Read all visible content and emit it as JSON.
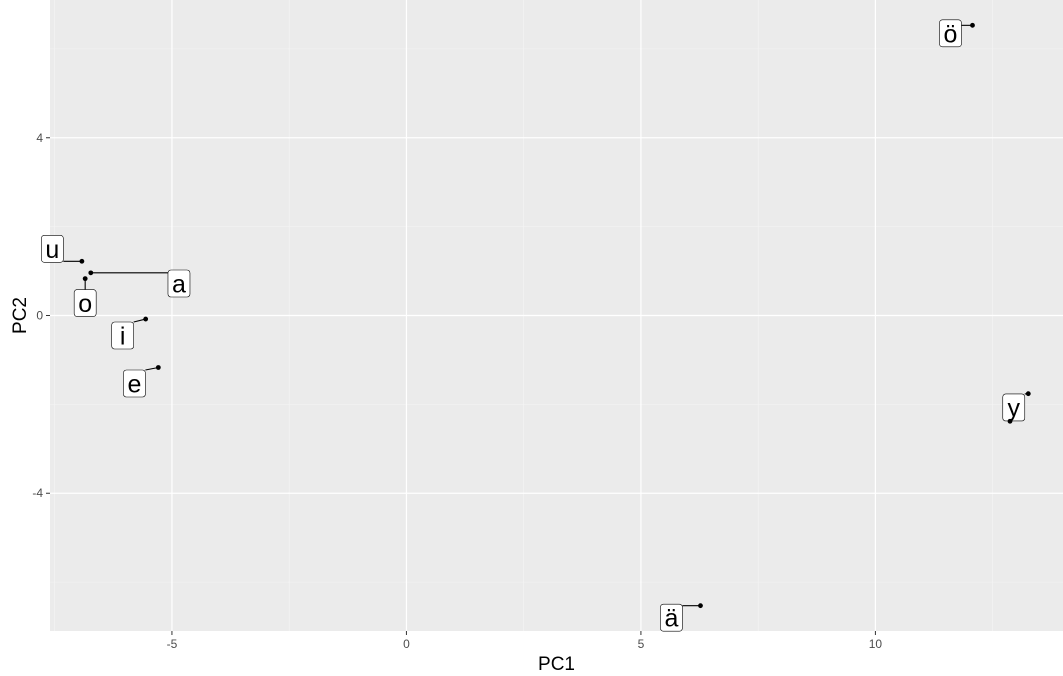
{
  "chart_data": {
    "type": "scatter",
    "xlabel": "PC1",
    "ylabel": "PC2",
    "xlim": [
      -7.6,
      14.0
    ],
    "ylim": [
      -7.1,
      7.1
    ],
    "x_ticks": [
      -5,
      0,
      5,
      10
    ],
    "y_ticks": [
      -4,
      0,
      4
    ],
    "x_tick_labels": [
      "-5",
      "0",
      "5",
      "10"
    ],
    "y_tick_labels": [
      "-4",
      "0",
      "4"
    ],
    "grid": true,
    "legend": "none",
    "colors": {
      "panel_background": "#ebebeb",
      "grid_major": "#ffffff",
      "grid_minor": "#f5f5f5",
      "point": "#000000",
      "label_fill": "#ffffff",
      "label_border": "#000000"
    },
    "points": [
      {
        "label": "u",
        "x": -6.92,
        "y": 1.22,
        "label_x": -7.55,
        "label_y": 1.5
      },
      {
        "label": "a",
        "x": -6.73,
        "y": 0.96,
        "label_x": -4.85,
        "label_y": 0.72
      },
      {
        "label": "o",
        "x": -6.85,
        "y": 0.83,
        "label_x": -6.85,
        "label_y": 0.28
      },
      {
        "label": "i",
        "x": -5.56,
        "y": -0.08,
        "label_x": -6.05,
        "label_y": -0.45
      },
      {
        "label": "e",
        "x": -5.29,
        "y": -1.17,
        "label_x": -5.8,
        "label_y": -1.53
      },
      {
        "label": "ö",
        "x": 12.07,
        "y": 6.53,
        "label_x": 11.6,
        "label_y": 6.35
      },
      {
        "label": "y",
        "x": 13.26,
        "y": -1.76,
        "label_x": 12.95,
        "label_y": -2.07
      },
      {
        "label": "y",
        "x": 12.87,
        "y": -2.38,
        "label_x": null,
        "label_y": null
      },
      {
        "label": "ä",
        "x": 6.27,
        "y": -6.53,
        "label_x": 5.65,
        "label_y": -6.8
      }
    ]
  }
}
